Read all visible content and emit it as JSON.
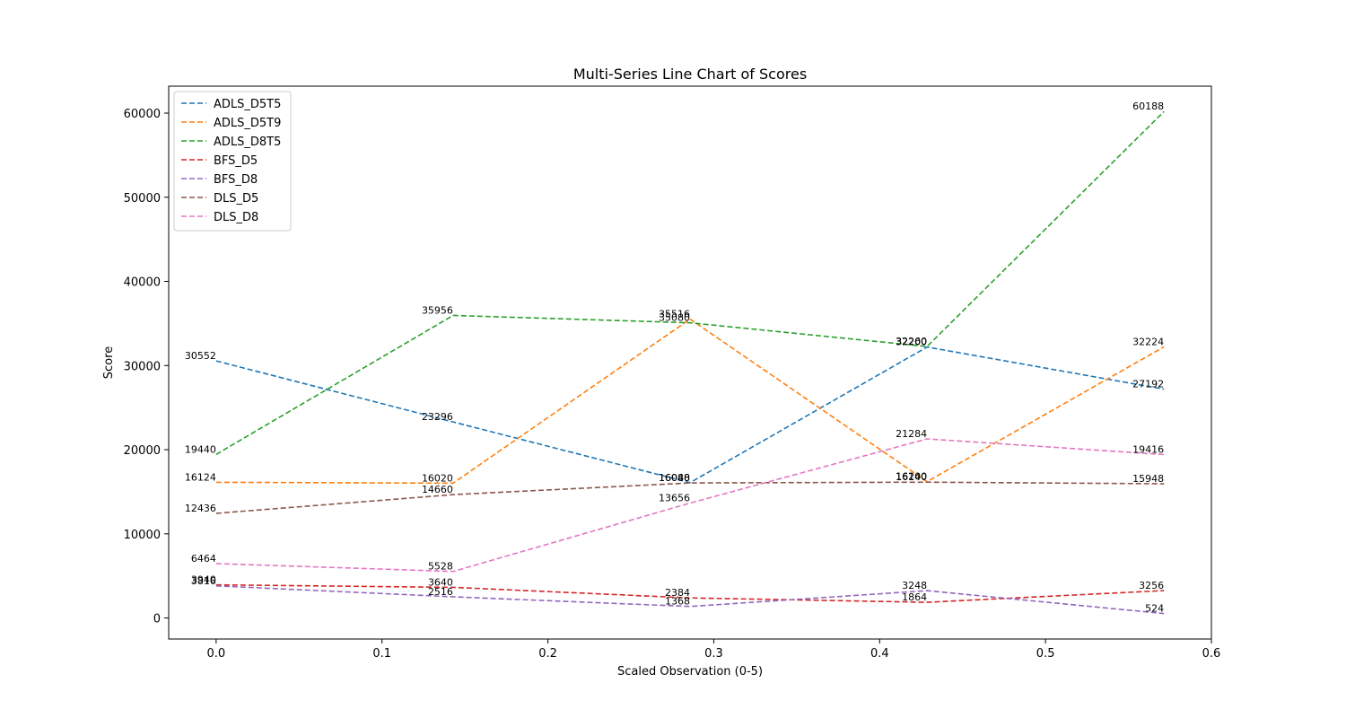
{
  "chart_data": {
    "type": "line",
    "title": "Multi-Series Line Chart of Scores",
    "xlabel": "Scaled Observation (0-5)",
    "ylabel": "Score",
    "xlim": [
      -0.0286,
      0.6
    ],
    "ylim": [
      -2500,
      63200
    ],
    "x_ticks": [
      0.0,
      0.1,
      0.2,
      0.3,
      0.4,
      0.5,
      0.6
    ],
    "x_tick_labels": [
      "0.0",
      "0.1",
      "0.2",
      "0.3",
      "0.4",
      "0.5",
      "0.6"
    ],
    "y_ticks": [
      0,
      10000,
      20000,
      30000,
      40000,
      50000,
      60000
    ],
    "y_tick_labels": [
      "0",
      "10000",
      "20000",
      "30000",
      "40000",
      "50000",
      "60000"
    ],
    "legend_position": "top-left",
    "line_style": "dashed",
    "x": [
      0.0,
      0.142857,
      0.285714,
      0.428571,
      0.571429
    ],
    "series": [
      {
        "name": "ADLS_D5T5",
        "color": "#1f77b4",
        "values": [
          30552,
          23296,
          16080,
          32200,
          27192
        ]
      },
      {
        "name": "ADLS_D5T9",
        "color": "#ff7f0e",
        "values": [
          16124,
          16020,
          35516,
          16200,
          32224
        ]
      },
      {
        "name": "ADLS_D8T5",
        "color": "#2ca02c",
        "values": [
          19440,
          35956,
          35080,
          32260,
          60188
        ]
      },
      {
        "name": "BFS_D5",
        "color": "#d62728",
        "values": [
          3940,
          3640,
          2384,
          1864,
          3256
        ]
      },
      {
        "name": "BFS_D8",
        "color": "#9467bd",
        "values": [
          3816,
          2516,
          1368,
          3248,
          524
        ]
      },
      {
        "name": "DLS_D5",
        "color": "#8c564b",
        "values": [
          12436,
          14660,
          16048,
          16140,
          15948
        ]
      },
      {
        "name": "DLS_D8",
        "color": "#e377c2",
        "values": [
          6464,
          5528,
          13656,
          21284,
          19416
        ]
      }
    ]
  }
}
